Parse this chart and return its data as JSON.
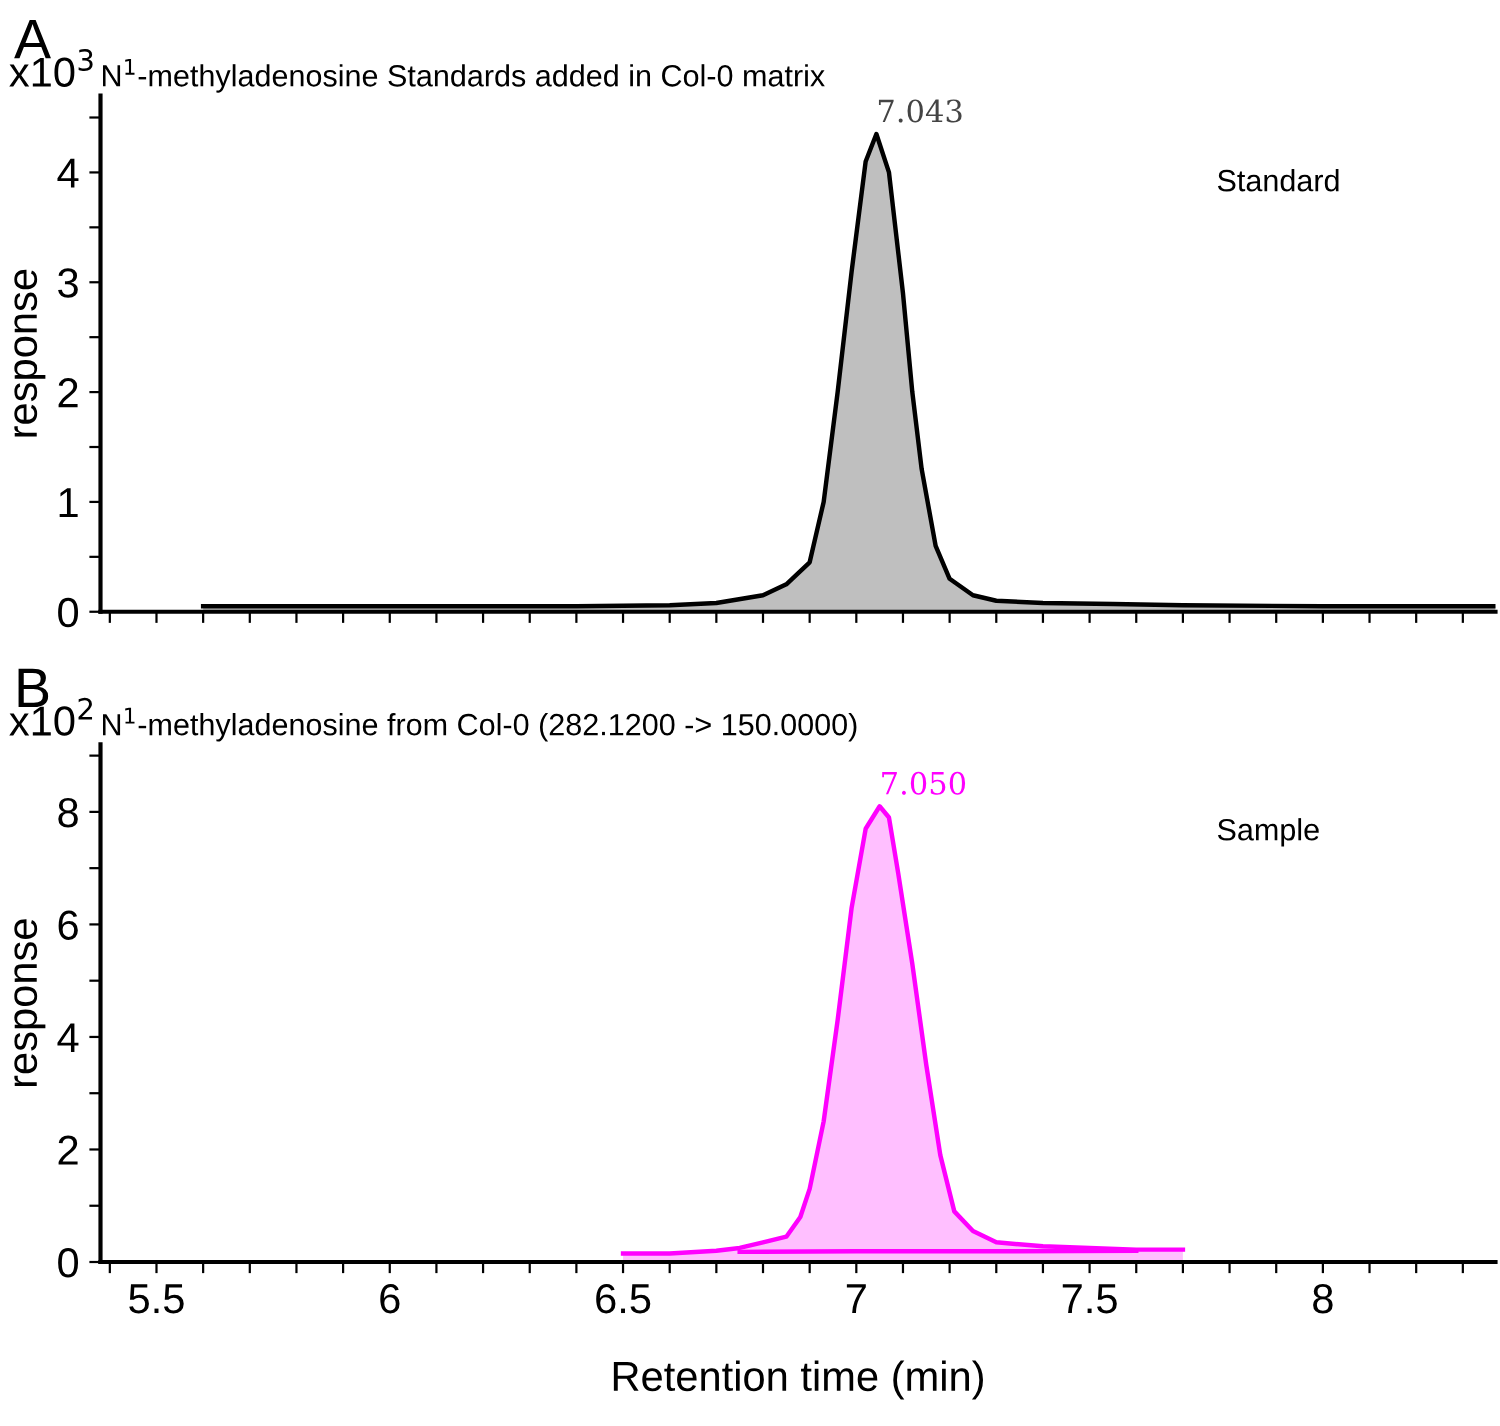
{
  "chart_data": [
    {
      "type": "area",
      "title": "N$^{1}$-methyladenosine Standards added in Col-0 matrix",
      "ylabel": "response",
      "annotations": [
        "A",
        "x10$^{3}$",
        {
          "text": "7.043",
          "x": 7.043,
          "y": 4.35
        },
        "Standard"
      ],
      "series": [
        {
          "color": "#000000",
          "x": [
            5.6,
            6.0,
            6.4,
            6.6,
            6.7,
            6.8,
            6.85,
            6.9,
            6.93,
            6.96,
            6.99,
            7.02,
            7.043,
            7.07,
            7.1,
            7.12,
            7.14,
            7.17,
            7.2,
            7.25,
            7.3,
            7.4,
            7.55,
            7.7,
            8.0,
            8.37
          ],
          "values": [
            0.05,
            0.05,
            0.05,
            0.06,
            0.08,
            0.15,
            0.25,
            0.45,
            1.0,
            2.0,
            3.1,
            4.1,
            4.35,
            4.0,
            2.9,
            2.0,
            1.3,
            0.6,
            0.3,
            0.15,
            0.1,
            0.08,
            0.07,
            0.06,
            0.05,
            0.05
          ]
        }
      ],
      "xlim": [
        5.38,
        8.37
      ],
      "ylim": [
        0,
        4.7
      ],
      "xticks": [
        {
          "value": 5.4,
          "label": null
        },
        5.5,
        {
          "value": 5.6,
          "label": null
        },
        {
          "value": 5.7,
          "label": null
        },
        {
          "value": 5.8,
          "label": null
        },
        {
          "value": 5.9,
          "label": null
        },
        6,
        {
          "value": 6.1,
          "label": null
        },
        {
          "value": 6.2,
          "label": null
        },
        {
          "value": 6.3,
          "label": null
        },
        {
          "value": 6.4,
          "label": null
        },
        6.5,
        {
          "value": 6.6,
          "label": null
        },
        {
          "value": 6.7,
          "label": null
        },
        {
          "value": 6.8,
          "label": null
        },
        {
          "value": 6.9,
          "label": null
        },
        7,
        {
          "value": 7.1,
          "label": null
        },
        {
          "value": 7.2,
          "label": null
        },
        {
          "value": 7.3,
          "label": null
        },
        {
          "value": 7.4,
          "label": null
        },
        7.5,
        {
          "value": 7.6,
          "label": null
        },
        {
          "value": 7.7,
          "label": null
        },
        {
          "value": 7.8,
          "label": null
        },
        {
          "value": 7.9,
          "label": null
        },
        8,
        {
          "value": 8.1,
          "label": null
        },
        {
          "value": 8.2,
          "label": null
        },
        {
          "value": 8.3,
          "label": null
        }
      ],
      "yticks": [
        0,
        {
          "value": 0.5,
          "label": null
        },
        1,
        {
          "value": 1.5,
          "label": null
        },
        2,
        {
          "value": 2.5,
          "label": null
        },
        3,
        {
          "value": 3.5,
          "label": null
        },
        4,
        {
          "value": 4.5,
          "label": null
        }
      ],
      "tick_labels": "y",
      "grid": false,
      "legend": false
    },
    {
      "type": "area",
      "title": "N$^{1}$-methyladenosine from Col-0 (282.1200 -> 150.0000)",
      "xlabel": "Retention time (min)",
      "ylabel": "response",
      "annotations": [
        "B",
        "x10$^{2}$",
        {
          "text": "7.050",
          "x": 7.05,
          "y": 8.1
        },
        "Sample"
      ],
      "series": [
        {
          "color": "#ff00ff",
          "x": [
            6.5,
            6.6,
            6.7,
            6.75,
            6.8,
            6.85,
            6.88,
            6.9,
            6.93,
            6.96,
            6.99,
            7.02,
            7.05,
            7.07,
            7.09,
            7.12,
            7.15,
            7.18,
            7.21,
            7.25,
            7.3,
            7.4,
            7.5,
            7.6,
            7.7
          ],
          "values": [
            0.15,
            0.15,
            0.2,
            0.25,
            0.35,
            0.45,
            0.8,
            1.3,
            2.5,
            4.3,
            6.3,
            7.7,
            8.1,
            7.9,
            6.9,
            5.3,
            3.5,
            1.9,
            0.9,
            0.55,
            0.35,
            0.28,
            0.25,
            0.22,
            0.22
          ]
        },
        {
          "type": "line",
          "color": "#ff00ff",
          "x": [
            6.75,
            7.0,
            7.3,
            7.6
          ],
          "values": [
            0.18,
            0.19,
            0.19,
            0.2
          ]
        }
      ],
      "xlim": [
        5.38,
        8.37
      ],
      "ylim": [
        0,
        9.2
      ],
      "xticks": [
        {
          "value": 5.4,
          "label": null
        },
        5.5,
        {
          "value": 5.6,
          "label": null
        },
        {
          "value": 5.7,
          "label": null
        },
        {
          "value": 5.8,
          "label": null
        },
        {
          "value": 5.9,
          "label": null
        },
        6,
        {
          "value": 6.1,
          "label": null
        },
        {
          "value": 6.2,
          "label": null
        },
        {
          "value": 6.3,
          "label": null
        },
        {
          "value": 6.4,
          "label": null
        },
        6.5,
        {
          "value": 6.6,
          "label": null
        },
        {
          "value": 6.7,
          "label": null
        },
        {
          "value": 6.8,
          "label": null
        },
        {
          "value": 6.9,
          "label": null
        },
        7,
        {
          "value": 7.1,
          "label": null
        },
        {
          "value": 7.2,
          "label": null
        },
        {
          "value": 7.3,
          "label": null
        },
        {
          "value": 7.4,
          "label": null
        },
        7.5,
        {
          "value": 7.6,
          "label": null
        },
        {
          "value": 7.7,
          "label": null
        },
        {
          "value": 7.8,
          "label": null
        },
        {
          "value": 7.9,
          "label": null
        },
        8,
        {
          "value": 8.1,
          "label": null
        },
        {
          "value": 8.2,
          "label": null
        },
        {
          "value": 8.3,
          "label": null
        }
      ],
      "yticks": [
        0,
        {
          "value": 1,
          "label": null
        },
        2,
        {
          "value": 3,
          "label": null
        },
        4,
        {
          "value": 5,
          "label": null
        },
        6,
        {
          "value": 7,
          "label": null
        },
        8,
        {
          "value": 9,
          "label": null
        }
      ],
      "grid": false,
      "legend": false
    }
  ]
}
